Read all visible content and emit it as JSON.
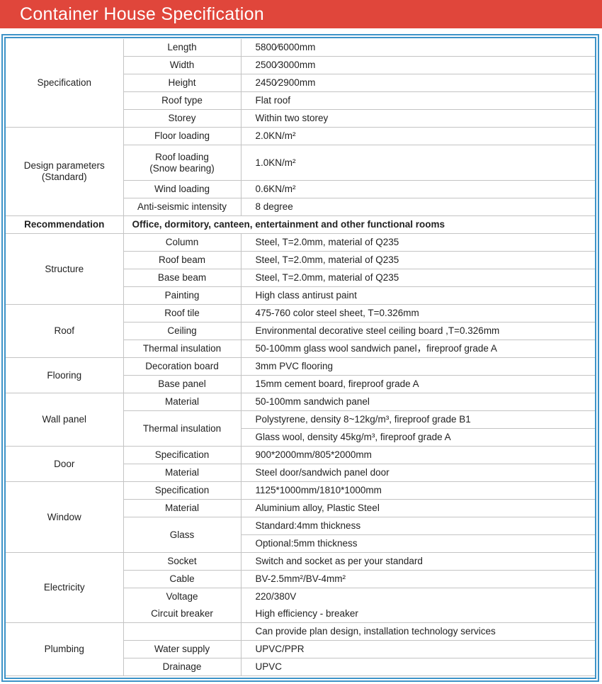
{
  "title": "Container House Specification",
  "colors": {
    "title_bar": "#e0463b",
    "frame": "#3d93c8",
    "grid": "#c4c4c4"
  },
  "groups": [
    {
      "name": "Specification",
      "rows": [
        {
          "label": "Length",
          "value": "5800⁄6000mm"
        },
        {
          "label": "Width",
          "value": "2500⁄3000mm"
        },
        {
          "label": "Height",
          "value": "2450⁄2900mm"
        },
        {
          "label": "Roof type",
          "value": "Flat roof"
        },
        {
          "label": "Storey",
          "value": "Within two storey"
        }
      ]
    },
    {
      "name": "Design parameters\n(Standard)",
      "rows": [
        {
          "label": "Floor loading",
          "value": "2.0KN/m²"
        },
        {
          "label": "Roof loading\n(Snow bearing)",
          "value": "1.0KN/m²",
          "tall": true
        },
        {
          "label": "Wind loading",
          "value": "0.6KN/m²"
        },
        {
          "label": "Anti-seismic intensity",
          "value": "8 degree"
        }
      ]
    },
    {
      "name": "Recommendation",
      "full": "Office, dormitory, canteen, entertainment and other functional rooms"
    },
    {
      "name": "Structure",
      "rows": [
        {
          "label": "Column",
          "value": "Steel, T=2.0mm, material of Q235"
        },
        {
          "label": "Roof beam",
          "value": "Steel, T=2.0mm, material of Q235"
        },
        {
          "label": "Base beam",
          "value": "Steel, T=2.0mm, material of Q235"
        },
        {
          "label": "Painting",
          "value": "High class antirust paint"
        }
      ]
    },
    {
      "name": "Roof",
      "rows": [
        {
          "label": "Roof tile",
          "value": "475-760 color steel sheet, T=0.326mm"
        },
        {
          "label": "Ceiling",
          "value": "Environmental decorative steel ceiling board ,T=0.326mm"
        },
        {
          "label": "Thermal insulation",
          "value": "50-100mm glass wool sandwich panel，fireproof grade A"
        }
      ]
    },
    {
      "name": "Flooring",
      "rows": [
        {
          "label": "Decoration board",
          "value": "3mm PVC flooring"
        },
        {
          "label": "Base panel",
          "value": "15mm cement board, fireproof grade A"
        }
      ]
    },
    {
      "name": "Wall panel",
      "rows": [
        {
          "label": "Material",
          "value": "50-100mm sandwich panel"
        },
        {
          "label": "Thermal insulation",
          "value": "Polystyrene, density 8~12kg/m³, fireproof grade B1",
          "span": 2
        },
        {
          "value": "Glass wool, density 45kg/m³, fireproof grade A"
        }
      ]
    },
    {
      "name": "Door",
      "rows": [
        {
          "label": "Specification",
          "value": "900*2000mm/805*2000mm"
        },
        {
          "label": "Material",
          "value": "Steel door/sandwich panel door"
        }
      ]
    },
    {
      "name": "Window",
      "rows": [
        {
          "label": "Specification",
          "value": "1125*1000mm/1810*1000mm"
        },
        {
          "label": "Material",
          "value": "Aluminium alloy, Plastic Steel"
        },
        {
          "label": "Glass",
          "value": "Standard:4mm thickness",
          "span": 2
        },
        {
          "value": "Optional:5mm thickness"
        }
      ]
    },
    {
      "name": "Electricity",
      "rows": [
        {
          "label": "Socket",
          "value": "Switch and socket as per your standard"
        },
        {
          "label": "Cable",
          "value": "BV-2.5mm²/BV-4mm²"
        },
        {
          "label": "Voltage",
          "value": "220/380V",
          "nobottom": true
        },
        {
          "label": "Circuit breaker",
          "value": "High efficiency - breaker",
          "notop": true
        }
      ]
    },
    {
      "name": "Plumbing",
      "rows": [
        {
          "label": "",
          "value": "Can provide plan design, installation technology services"
        },
        {
          "label": "Water supply",
          "value": "UPVC/PPR"
        },
        {
          "label": "Drainage",
          "value": "UPVC"
        }
      ]
    }
  ]
}
